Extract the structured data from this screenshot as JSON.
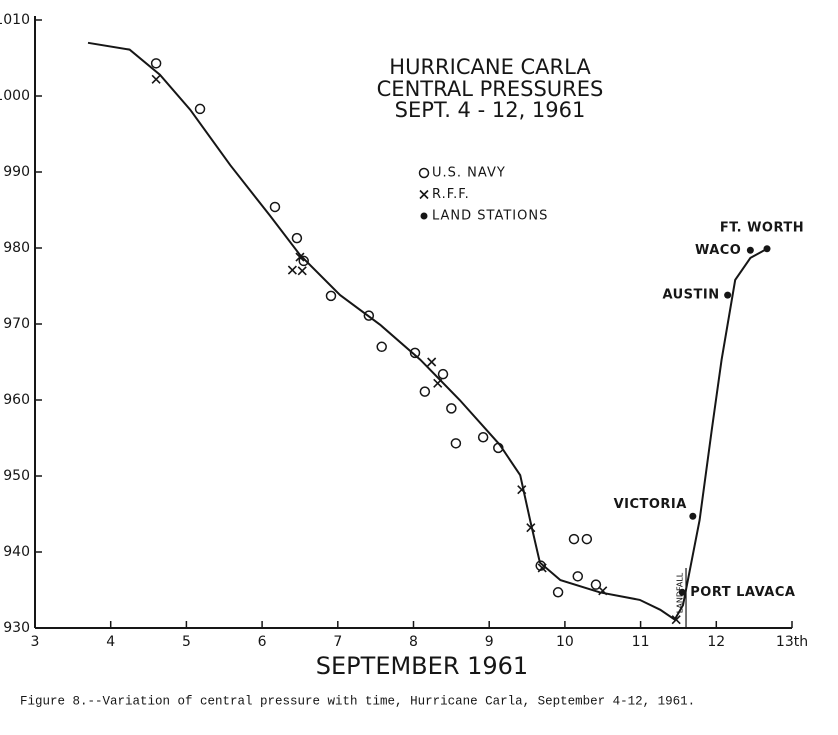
{
  "chart_data": {
    "type": "scatter",
    "title": [
      "HURRICANE CARLA",
      "CENTRAL PRESSURES",
      "SEPT. 4 - 12, 1961"
    ],
    "x_label": "SEPTEMBER 1961",
    "caption": "Figure 8.--Variation of central pressure with time, Hurricane Carla, September 4-12, 1961.",
    "xlim": [
      3,
      13
    ],
    "ylim": [
      930,
      1010
    ],
    "xticks": [
      3,
      4,
      5,
      6,
      7,
      8,
      9,
      10,
      11,
      12,
      {
        "value": 13,
        "label": "13th"
      }
    ],
    "yticks": [
      930,
      940,
      950,
      960,
      970,
      980,
      990,
      1000,
      1010
    ],
    "grid": false,
    "color": "#161616",
    "series": [
      {
        "name": "U.S. NAVY",
        "marker": "circle",
        "x": [
          4.6,
          5.18,
          6.17,
          6.46,
          6.55,
          6.91,
          7.41,
          7.58,
          8.02,
          8.15,
          8.39,
          8.5,
          8.56,
          8.92,
          9.12,
          9.68,
          9.91,
          10.12,
          10.17,
          10.29,
          10.41
        ],
        "values": [
          1004.3,
          998.3,
          985.4,
          981.3,
          978.3,
          973.7,
          971.1,
          967.0,
          966.2,
          961.1,
          963.4,
          958.9,
          954.3,
          955.1,
          953.7,
          938.2,
          934.7,
          941.7,
          936.8,
          941.7,
          935.7
        ]
      },
      {
        "name": "R.F.F.",
        "marker": "x",
        "x": [
          4.6,
          6.4,
          6.53,
          6.5,
          8.24,
          8.32,
          9.43,
          9.55,
          9.7,
          10.5,
          11.47
        ],
        "values": [
          1002.2,
          977.1,
          977.0,
          978.8,
          965.0,
          962.2,
          948.2,
          943.2,
          937.9,
          934.9,
          931.1
        ]
      },
      {
        "name": "LAND STATIONS",
        "marker": "dot",
        "x": [
          11.55,
          11.69,
          12.15,
          12.45,
          12.67
        ],
        "values": [
          934.7,
          944.7,
          973.8,
          979.7,
          979.9
        ],
        "point_labels": [
          "PORT LAVACA",
          "VICTORIA",
          "AUSTIN",
          "WACO",
          "FT. WORTH"
        ]
      }
    ],
    "curve": {
      "x": [
        3.7,
        4.25,
        4.65,
        5.05,
        5.58,
        6.1,
        6.5,
        7.03,
        7.56,
        8.09,
        8.61,
        9.14,
        9.41,
        9.54,
        9.67,
        9.94,
        10.46,
        10.99,
        11.26,
        11.45,
        11.56,
        11.78,
        11.94,
        12.07,
        12.25,
        12.45,
        12.67
      ],
      "values": [
        1007.0,
        1006.1,
        1002.8,
        998.2,
        990.9,
        984.3,
        979.1,
        973.8,
        969.9,
        965.3,
        960.0,
        954.1,
        950.1,
        944.2,
        938.6,
        936.3,
        934.7,
        933.7,
        932.4,
        931.1,
        933.0,
        944.2,
        956.1,
        965.3,
        975.8,
        978.7,
        979.9
      ]
    },
    "landfall": {
      "label": "LANDFALL",
      "x": 11.6
    }
  }
}
